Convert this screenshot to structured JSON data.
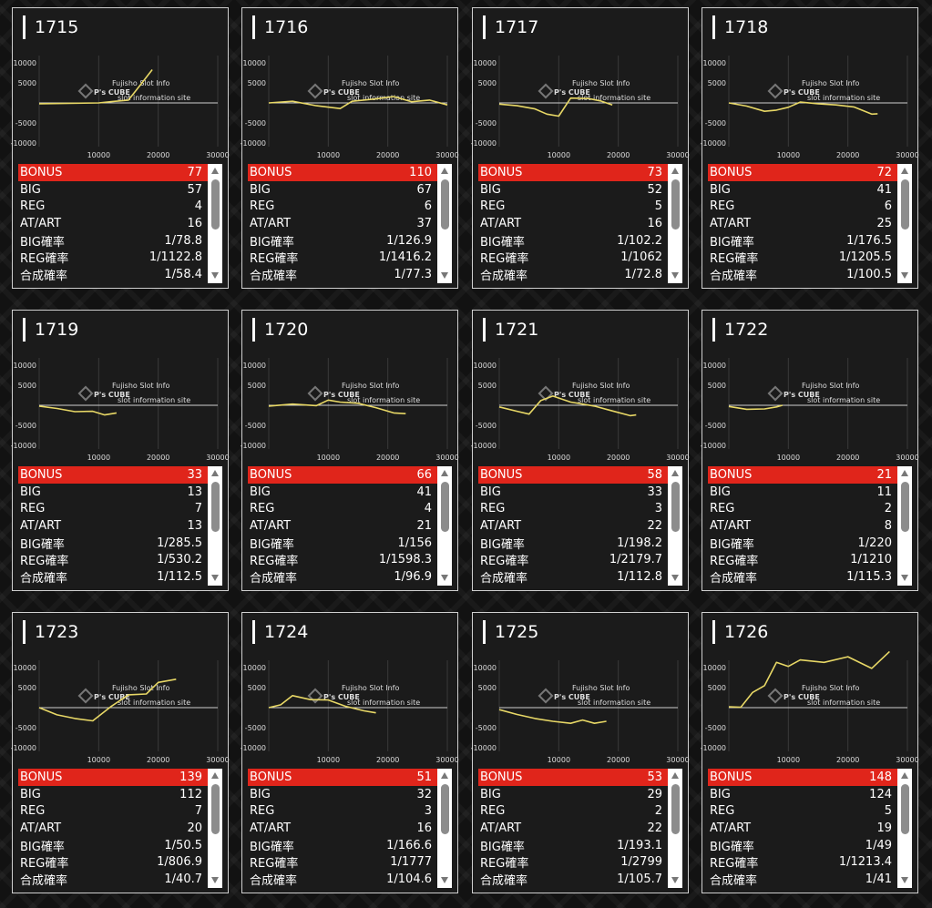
{
  "cards": [
    {
      "id": "1715",
      "stats": {
        "bonus": "77",
        "big": "57",
        "reg": "4",
        "at": "16",
        "big_rate": "1/78.8",
        "reg_rate": "1/1122.8",
        "total_rate": "1/58.4"
      },
      "chart_data": {
        "type": "line",
        "x": [
          0,
          5000,
          10000,
          12000,
          15000,
          17000,
          19000
        ],
        "y": [
          -200,
          -100,
          0,
          300,
          700,
          4500,
          8300
        ]
      }
    },
    {
      "id": "1716",
      "stats": {
        "bonus": "110",
        "big": "67",
        "reg": "6",
        "at": "37",
        "big_rate": "1/126.9",
        "reg_rate": "1/1416.2",
        "total_rate": "1/77.3"
      },
      "chart_data": {
        "type": "line",
        "x": [
          0,
          4000,
          8000,
          12000,
          14000,
          18000,
          21000,
          24000,
          27000,
          30000
        ],
        "y": [
          0,
          400,
          -700,
          -1400,
          400,
          1000,
          1600,
          300,
          700,
          -500
        ]
      }
    },
    {
      "id": "1717",
      "stats": {
        "bonus": "73",
        "big": "52",
        "reg": "5",
        "at": "16",
        "big_rate": "1/102.2",
        "reg_rate": "1/1062",
        "total_rate": "1/72.8"
      },
      "chart_data": {
        "type": "line",
        "x": [
          0,
          3000,
          6000,
          8000,
          10000,
          12000,
          15000,
          17000,
          19000
        ],
        "y": [
          -300,
          -700,
          -1500,
          -2800,
          -3300,
          1200,
          1100,
          500,
          -500
        ]
      }
    },
    {
      "id": "1718",
      "stats": {
        "bonus": "72",
        "big": "41",
        "reg": "6",
        "at": "25",
        "big_rate": "1/176.5",
        "reg_rate": "1/1205.5",
        "total_rate": "1/100.5"
      },
      "chart_data": {
        "type": "line",
        "x": [
          0,
          3000,
          6000,
          8000,
          10000,
          12000,
          15000,
          18000,
          21000,
          24000,
          25000
        ],
        "y": [
          0,
          -800,
          -2100,
          -1800,
          -1100,
          200,
          -200,
          -500,
          -1000,
          -2800,
          -2700
        ]
      }
    },
    {
      "id": "1719",
      "stats": {
        "bonus": "33",
        "big": "13",
        "reg": "7",
        "at": "13",
        "big_rate": "1/285.5",
        "reg_rate": "1/530.2",
        "total_rate": "1/112.5"
      },
      "chart_data": {
        "type": "line",
        "x": [
          0,
          3000,
          6000,
          9000,
          11000,
          13000
        ],
        "y": [
          -200,
          -800,
          -1600,
          -1500,
          -2400,
          -1900
        ]
      }
    },
    {
      "id": "1720",
      "stats": {
        "bonus": "66",
        "big": "41",
        "reg": "4",
        "at": "21",
        "big_rate": "1/156",
        "reg_rate": "1/1598.3",
        "total_rate": "1/96.9"
      },
      "chart_data": {
        "type": "line",
        "x": [
          0,
          4000,
          8000,
          10000,
          12000,
          15000,
          18000,
          21000,
          23000
        ],
        "y": [
          -200,
          300,
          -100,
          1300,
          800,
          500,
          -600,
          -1900,
          -2100
        ]
      }
    },
    {
      "id": "1721",
      "stats": {
        "bonus": "58",
        "big": "33",
        "reg": "3",
        "at": "22",
        "big_rate": "1/198.2",
        "reg_rate": "1/2179.7",
        "total_rate": "1/112.8"
      },
      "chart_data": {
        "type": "line",
        "x": [
          0,
          3000,
          5000,
          7000,
          9000,
          12000,
          16000,
          19000,
          22000,
          23000
        ],
        "y": [
          -400,
          -1500,
          -2200,
          1200,
          2300,
          800,
          -200,
          -1400,
          -2600,
          -2400
        ]
      }
    },
    {
      "id": "1722",
      "stats": {
        "bonus": "21",
        "big": "11",
        "reg": "2",
        "at": "8",
        "big_rate": "1/220",
        "reg_rate": "1/1210",
        "total_rate": "1/115.3"
      },
      "chart_data": {
        "type": "line",
        "x": [
          0,
          3000,
          6000,
          8000,
          9000
        ],
        "y": [
          -300,
          -1000,
          -900,
          -400,
          0
        ]
      }
    },
    {
      "id": "1723",
      "stats": {
        "bonus": "139",
        "big": "112",
        "reg": "7",
        "at": "20",
        "big_rate": "1/50.5",
        "reg_rate": "1/806.9",
        "total_rate": "1/40.7"
      },
      "chart_data": {
        "type": "line",
        "x": [
          0,
          3000,
          6000,
          9000,
          12000,
          15000,
          18000,
          20000,
          23000
        ],
        "y": [
          0,
          -1800,
          -2700,
          -3300,
          200,
          3200,
          3400,
          6300,
          7100
        ]
      }
    },
    {
      "id": "1724",
      "stats": {
        "bonus": "51",
        "big": "32",
        "reg": "3",
        "at": "16",
        "big_rate": "1/166.6",
        "reg_rate": "1/1777",
        "total_rate": "1/104.6"
      },
      "chart_data": {
        "type": "line",
        "x": [
          0,
          2000,
          4000,
          7000,
          10000,
          13000,
          16000,
          18000
        ],
        "y": [
          0,
          700,
          3000,
          2000,
          1900,
          300,
          -800,
          -1300
        ]
      }
    },
    {
      "id": "1725",
      "stats": {
        "bonus": "53",
        "big": "29",
        "reg": "2",
        "at": "22",
        "big_rate": "1/193.1",
        "reg_rate": "1/2799",
        "total_rate": "1/105.7"
      },
      "chart_data": {
        "type": "line",
        "x": [
          0,
          3000,
          6000,
          9000,
          12000,
          14000,
          16000,
          18000
        ],
        "y": [
          -500,
          -1700,
          -2700,
          -3400,
          -3900,
          -3100,
          -3900,
          -3400
        ]
      }
    },
    {
      "id": "1726",
      "stats": {
        "bonus": "148",
        "big": "124",
        "reg": "5",
        "at": "19",
        "big_rate": "1/49",
        "reg_rate": "1/1213.4",
        "total_rate": "1/41"
      },
      "chart_data": {
        "type": "line",
        "x": [
          0,
          2000,
          4000,
          6000,
          8000,
          10000,
          12000,
          16000,
          20000,
          24000,
          27000
        ],
        "y": [
          200,
          100,
          3800,
          5500,
          11300,
          10300,
          11900,
          11300,
          12700,
          9800,
          14000
        ]
      }
    }
  ],
  "labels": {
    "bonus": "BONUS",
    "big": "BIG",
    "reg": "REG",
    "at": "AT/ART",
    "big_rate": "BIG確率",
    "reg_rate": "REG確率",
    "total_rate": "合成確率"
  },
  "axis": {
    "y_ticks": [
      "10000",
      "5000",
      "-5000",
      "-10000"
    ],
    "x_ticks": [
      "10000",
      "20000",
      "30000"
    ],
    "xlim": [
      0,
      30000
    ],
    "ylim": [
      -10000,
      10000
    ]
  },
  "watermark": {
    "name": "P's CUBE",
    "top": "Fujisho Slot Info",
    "bottom": "slot information site"
  },
  "colors": {
    "line": "#e8d866",
    "bonus_bg": "#e0251b"
  }
}
